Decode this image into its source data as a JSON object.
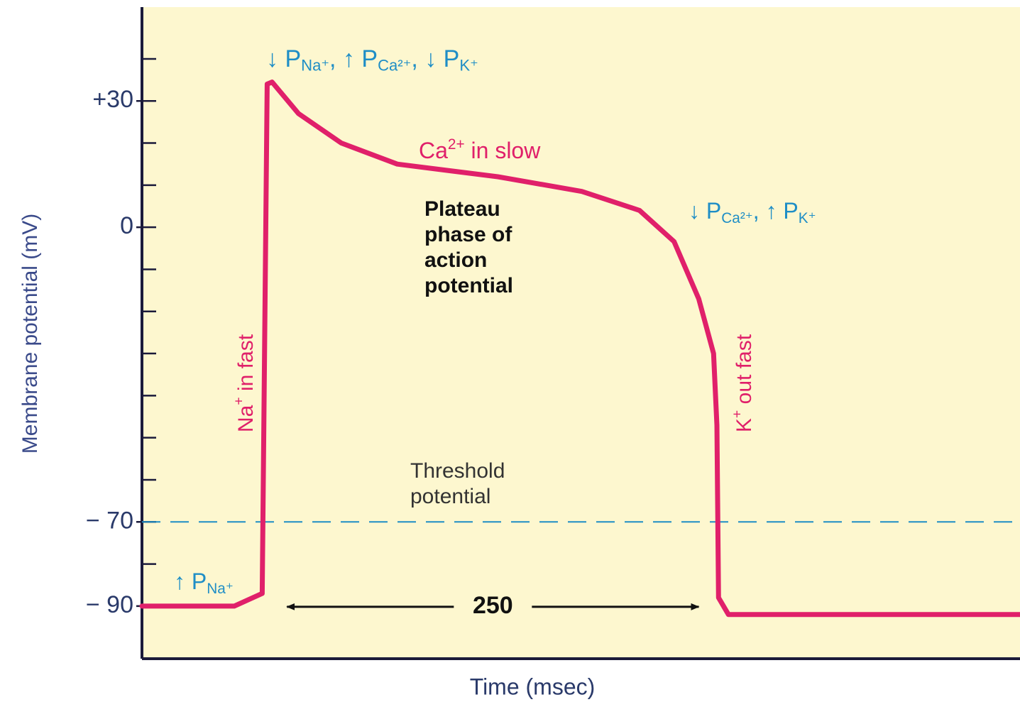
{
  "chart_data": {
    "type": "line",
    "x_label": "Time (msec)",
    "y_label": "Membrane potential (mV)",
    "x": [
      0,
      56,
      73,
      76,
      79,
      95,
      121,
      155,
      216,
      267,
      302,
      323,
      338,
      347,
      349,
      350,
      356,
      533
    ],
    "series": [
      {
        "color": "#e0206a",
        "values": [
          -90,
          -90,
          -87,
          34,
          34.5,
          27,
          20,
          15,
          12,
          8.5,
          4,
          -3.4,
          -17,
          -30,
          -47,
          -88,
          -92,
          -92
        ]
      }
    ],
    "xlim": [
      0,
      533
    ],
    "ylim": [
      -102.5,
      52.3
    ],
    "yticks": [
      {
        "value": 30,
        "label": "+30"
      },
      0,
      {
        "value": -70,
        "label": "− 70"
      },
      {
        "value": -90,
        "label": "− 90"
      }
    ],
    "minor_yticks": [
      40,
      30,
      20,
      10,
      0,
      -10,
      -20,
      -30,
      -40,
      -50,
      -60,
      -70,
      -80,
      -90
    ],
    "threshold": -70,
    "threshold_color": "#1f8ec6",
    "span": {
      "label": "250",
      "start": 88,
      "end": 338
    },
    "background": "#fdf7cf",
    "annotations": [
      {
        "segments": [
          {
            "t": "↓ P"
          },
          {
            "s": "Na⁺"
          },
          {
            "t": ", ↑ P"
          },
          {
            "s": "Ca²⁺"
          },
          {
            "t": ", ↓ P"
          },
          {
            "s": "K⁺"
          }
        ],
        "color": "#1f8ec6"
      },
      {
        "segments": [
          {
            "t": "↓ P"
          },
          {
            "s": "Ca²⁺"
          },
          {
            "t": ", ↑ P"
          },
          {
            "s": "K⁺"
          }
        ],
        "color": "#1f8ec6"
      },
      {
        "segments": [
          {
            "t": "↑ P"
          },
          {
            "s": "Na⁺"
          }
        ],
        "color": "#1f8ec6"
      },
      {
        "segments": [
          {
            "t": "Ca"
          },
          {
            "p": "2+"
          },
          {
            "t": " in slow"
          }
        ],
        "color": "#e0206a"
      },
      {
        "lines": [
          "Plateau",
          "phase of",
          "action",
          "potential"
        ],
        "color": "#111111"
      },
      {
        "lines": [
          "Threshold",
          "potential"
        ],
        "color": "#333333"
      },
      {
        "segments": [
          {
            "t": "Na"
          },
          {
            "p": "+"
          },
          {
            "t": " in fast"
          }
        ],
        "color": "#e0206a"
      },
      {
        "segments": [
          {
            "t": "K"
          },
          {
            "p": "+"
          },
          {
            "t": " out fast"
          }
        ],
        "color": "#e0206a"
      }
    ]
  }
}
